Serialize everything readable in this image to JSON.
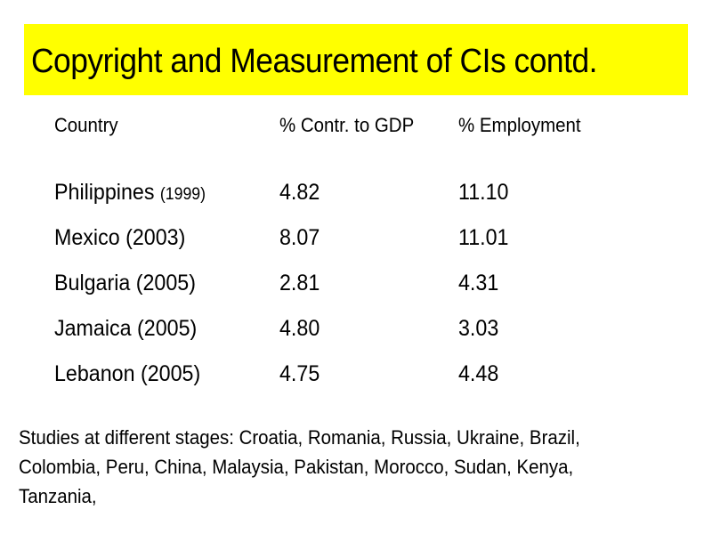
{
  "title": "Copyright and Measurement of CIs contd.",
  "table": {
    "headers": {
      "country": "Country",
      "gdp": "% Contr. to GDP",
      "employment": "%  Employment"
    },
    "rows": [
      {
        "country": "Philippines",
        "year": "(1999)",
        "gdp": "4.82",
        "employment": "11.10"
      },
      {
        "country": "Mexico (2003)",
        "year": "",
        "gdp": "8.07",
        "employment": "11.01"
      },
      {
        "country": "Bulgaria (2005)",
        "year": "",
        "gdp": "2.81",
        "employment": "4.31"
      },
      {
        "country": "Jamaica (2005)",
        "year": "",
        "gdp": "4.80",
        "employment": "3.03"
      },
      {
        "country": "Lebanon (2005)",
        "year": "",
        "gdp": "4.75",
        "employment": "4.48"
      }
    ]
  },
  "notes": "Studies at different stages: Croatia, Romania, Russia, Ukraine, Brazil, Colombia, Peru, China, Malaysia, Pakistan, Morocco, Sudan, Kenya, Tanzania,"
}
